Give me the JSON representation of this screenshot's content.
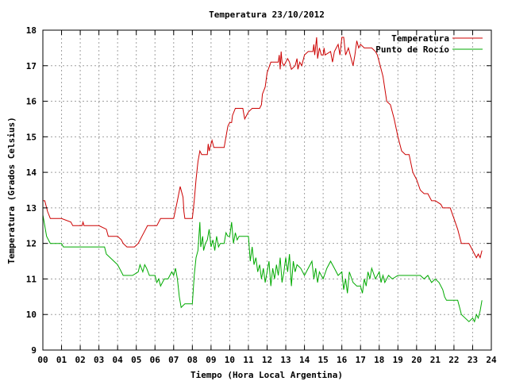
{
  "chart_data": {
    "type": "line",
    "title": "Temperatura 23/10/2012",
    "xlabel": "Tiempo (Hora Local Argentina)",
    "ylabel": "Temperatura (Grados Celsius)",
    "xlim": [
      0,
      24
    ],
    "ylim": [
      9,
      18
    ],
    "x_ticks": [
      "00",
      "01",
      "02",
      "03",
      "04",
      "05",
      "06",
      "07",
      "08",
      "09",
      "10",
      "11",
      "12",
      "13",
      "14",
      "15",
      "16",
      "17",
      "18",
      "19",
      "20",
      "21",
      "22",
      "23",
      "24"
    ],
    "y_ticks": [
      "9",
      "10",
      "11",
      "12",
      "13",
      "14",
      "15",
      "16",
      "17",
      "18"
    ],
    "grid": true,
    "legend_position": "top-right",
    "series": [
      {
        "name": "Temperatura",
        "color": "#cc0000",
        "points": [
          [
            0.0,
            13.2
          ],
          [
            0.1,
            13.2
          ],
          [
            0.25,
            12.9
          ],
          [
            0.4,
            12.7
          ],
          [
            1.0,
            12.7
          ],
          [
            1.5,
            12.6
          ],
          [
            1.6,
            12.5
          ],
          [
            2.1,
            12.5
          ],
          [
            2.15,
            12.6
          ],
          [
            2.2,
            12.5
          ],
          [
            3.0,
            12.5
          ],
          [
            3.4,
            12.4
          ],
          [
            3.5,
            12.2
          ],
          [
            4.0,
            12.2
          ],
          [
            4.2,
            12.1
          ],
          [
            4.3,
            12.0
          ],
          [
            4.5,
            11.9
          ],
          [
            4.9,
            11.9
          ],
          [
            5.1,
            12.0
          ],
          [
            5.3,
            12.2
          ],
          [
            5.5,
            12.4
          ],
          [
            5.6,
            12.5
          ],
          [
            6.1,
            12.5
          ],
          [
            6.3,
            12.7
          ],
          [
            7.0,
            12.7
          ],
          [
            7.2,
            13.2
          ],
          [
            7.35,
            13.6
          ],
          [
            7.5,
            13.3
          ],
          [
            7.55,
            12.9
          ],
          [
            7.6,
            12.7
          ],
          [
            8.0,
            12.7
          ],
          [
            8.1,
            13.2
          ],
          [
            8.2,
            13.8
          ],
          [
            8.3,
            14.3
          ],
          [
            8.4,
            14.6
          ],
          [
            8.5,
            14.5
          ],
          [
            8.8,
            14.5
          ],
          [
            8.85,
            14.8
          ],
          [
            8.9,
            14.6
          ],
          [
            9.05,
            14.9
          ],
          [
            9.15,
            14.7
          ],
          [
            9.7,
            14.7
          ],
          [
            9.8,
            15.0
          ],
          [
            9.9,
            15.3
          ],
          [
            10.0,
            15.4
          ],
          [
            10.1,
            15.4
          ],
          [
            10.15,
            15.6
          ],
          [
            10.3,
            15.8
          ],
          [
            10.7,
            15.8
          ],
          [
            10.8,
            15.5
          ],
          [
            10.9,
            15.6
          ],
          [
            11.0,
            15.7
          ],
          [
            11.2,
            15.8
          ],
          [
            11.6,
            15.8
          ],
          [
            11.7,
            15.9
          ],
          [
            11.75,
            16.2
          ],
          [
            11.9,
            16.4
          ],
          [
            12.0,
            16.8
          ],
          [
            12.2,
            17.1
          ],
          [
            12.6,
            17.1
          ],
          [
            12.65,
            17.3
          ],
          [
            12.7,
            16.9
          ],
          [
            12.75,
            17.4
          ],
          [
            12.8,
            17.1
          ],
          [
            12.9,
            17.0
          ],
          [
            13.0,
            17.1
          ],
          [
            13.1,
            17.2
          ],
          [
            13.2,
            17.1
          ],
          [
            13.3,
            16.9
          ],
          [
            13.5,
            17.0
          ],
          [
            13.6,
            17.2
          ],
          [
            13.65,
            16.9
          ],
          [
            13.75,
            17.1
          ],
          [
            13.85,
            17.0
          ],
          [
            14.0,
            17.3
          ],
          [
            14.2,
            17.4
          ],
          [
            14.45,
            17.4
          ],
          [
            14.5,
            17.6
          ],
          [
            14.55,
            17.3
          ],
          [
            14.65,
            17.8
          ],
          [
            14.7,
            17.2
          ],
          [
            14.8,
            17.5
          ],
          [
            14.9,
            17.3
          ],
          [
            15.0,
            17.3
          ],
          [
            15.05,
            17.5
          ],
          [
            15.1,
            17.3
          ],
          [
            15.4,
            17.4
          ],
          [
            15.5,
            17.1
          ],
          [
            15.6,
            17.4
          ],
          [
            15.7,
            17.5
          ],
          [
            15.8,
            17.6
          ],
          [
            15.9,
            17.3
          ],
          [
            16.0,
            17.8
          ],
          [
            16.1,
            17.8
          ],
          [
            16.2,
            17.3
          ],
          [
            16.35,
            17.5
          ],
          [
            16.5,
            17.2
          ],
          [
            16.6,
            17.0
          ],
          [
            16.7,
            17.3
          ],
          [
            16.8,
            17.7
          ],
          [
            16.9,
            17.5
          ],
          [
            17.0,
            17.6
          ],
          [
            17.2,
            17.5
          ],
          [
            17.6,
            17.5
          ],
          [
            17.8,
            17.4
          ],
          [
            17.9,
            17.3
          ],
          [
            18.0,
            17.1
          ],
          [
            18.2,
            16.7
          ],
          [
            18.4,
            16.0
          ],
          [
            18.6,
            15.9
          ],
          [
            18.8,
            15.5
          ],
          [
            19.0,
            15.0
          ],
          [
            19.2,
            14.6
          ],
          [
            19.4,
            14.5
          ],
          [
            19.6,
            14.5
          ],
          [
            19.8,
            14.0
          ],
          [
            20.0,
            13.8
          ],
          [
            20.2,
            13.5
          ],
          [
            20.4,
            13.4
          ],
          [
            20.6,
            13.4
          ],
          [
            20.8,
            13.2
          ],
          [
            21.0,
            13.2
          ],
          [
            21.3,
            13.1
          ],
          [
            21.4,
            13.0
          ],
          [
            21.8,
            13.0
          ],
          [
            22.0,
            12.7
          ],
          [
            22.2,
            12.4
          ],
          [
            22.4,
            12.0
          ],
          [
            22.8,
            12.0
          ],
          [
            23.0,
            11.8
          ],
          [
            23.2,
            11.6
          ],
          [
            23.3,
            11.7
          ],
          [
            23.4,
            11.6
          ],
          [
            23.5,
            11.8
          ]
        ]
      },
      {
        "name": "Punto de Rocío",
        "color": "#00aa00",
        "points": [
          [
            0.0,
            12.8
          ],
          [
            0.1,
            12.5
          ],
          [
            0.2,
            12.2
          ],
          [
            0.4,
            12.0
          ],
          [
            1.0,
            12.0
          ],
          [
            1.1,
            11.9
          ],
          [
            2.0,
            11.9
          ],
          [
            3.0,
            11.9
          ],
          [
            3.3,
            11.9
          ],
          [
            3.4,
            11.7
          ],
          [
            3.6,
            11.6
          ],
          [
            3.8,
            11.5
          ],
          [
            4.0,
            11.4
          ],
          [
            4.2,
            11.2
          ],
          [
            4.3,
            11.1
          ],
          [
            4.8,
            11.1
          ],
          [
            5.1,
            11.2
          ],
          [
            5.2,
            11.4
          ],
          [
            5.35,
            11.2
          ],
          [
            5.45,
            11.4
          ],
          [
            5.55,
            11.3
          ],
          [
            5.7,
            11.1
          ],
          [
            6.0,
            11.1
          ],
          [
            6.1,
            10.9
          ],
          [
            6.2,
            11.0
          ],
          [
            6.3,
            10.8
          ],
          [
            6.5,
            11.0
          ],
          [
            6.7,
            11.0
          ],
          [
            6.9,
            11.2
          ],
          [
            7.0,
            11.1
          ],
          [
            7.1,
            11.3
          ],
          [
            7.2,
            11.0
          ],
          [
            7.3,
            10.5
          ],
          [
            7.4,
            10.2
          ],
          [
            7.6,
            10.3
          ],
          [
            8.0,
            10.3
          ],
          [
            8.1,
            11.1
          ],
          [
            8.2,
            11.6
          ],
          [
            8.3,
            11.8
          ],
          [
            8.4,
            12.6
          ],
          [
            8.45,
            11.9
          ],
          [
            8.55,
            12.2
          ],
          [
            8.6,
            11.8
          ],
          [
            8.7,
            12.0
          ],
          [
            8.8,
            12.1
          ],
          [
            8.9,
            12.4
          ],
          [
            9.0,
            11.9
          ],
          [
            9.1,
            12.1
          ],
          [
            9.2,
            11.8
          ],
          [
            9.3,
            12.2
          ],
          [
            9.4,
            11.9
          ],
          [
            9.5,
            12.0
          ],
          [
            9.7,
            12.0
          ],
          [
            9.8,
            12.3
          ],
          [
            9.9,
            12.2
          ],
          [
            10.0,
            12.2
          ],
          [
            10.1,
            12.6
          ],
          [
            10.2,
            12.0
          ],
          [
            10.3,
            12.3
          ],
          [
            10.4,
            12.1
          ],
          [
            10.5,
            12.2
          ],
          [
            11.0,
            12.2
          ],
          [
            11.1,
            11.5
          ],
          [
            11.2,
            11.9
          ],
          [
            11.3,
            11.4
          ],
          [
            11.4,
            11.6
          ],
          [
            11.5,
            11.2
          ],
          [
            11.6,
            11.4
          ],
          [
            11.7,
            11.0
          ],
          [
            11.8,
            11.3
          ],
          [
            11.9,
            10.9
          ],
          [
            12.0,
            11.2
          ],
          [
            12.1,
            11.5
          ],
          [
            12.2,
            10.8
          ],
          [
            12.3,
            11.3
          ],
          [
            12.4,
            11.0
          ],
          [
            12.5,
            11.4
          ],
          [
            12.6,
            11.1
          ],
          [
            12.7,
            11.6
          ],
          [
            12.8,
            10.9
          ],
          [
            12.9,
            11.2
          ],
          [
            13.0,
            11.6
          ],
          [
            13.1,
            11.2
          ],
          [
            13.2,
            11.7
          ],
          [
            13.3,
            10.8
          ],
          [
            13.4,
            11.5
          ],
          [
            13.5,
            11.2
          ],
          [
            13.6,
            11.4
          ],
          [
            13.8,
            11.3
          ],
          [
            14.0,
            11.1
          ],
          [
            14.2,
            11.3
          ],
          [
            14.4,
            11.5
          ],
          [
            14.5,
            11.0
          ],
          [
            14.6,
            11.3
          ],
          [
            14.7,
            10.9
          ],
          [
            14.8,
            11.2
          ],
          [
            15.0,
            11.0
          ],
          [
            15.2,
            11.3
          ],
          [
            15.4,
            11.5
          ],
          [
            15.6,
            11.3
          ],
          [
            15.8,
            11.1
          ],
          [
            16.0,
            11.2
          ],
          [
            16.1,
            10.7
          ],
          [
            16.2,
            11.0
          ],
          [
            16.3,
            10.6
          ],
          [
            16.4,
            11.2
          ],
          [
            16.6,
            10.9
          ],
          [
            16.8,
            10.8
          ],
          [
            17.0,
            10.8
          ],
          [
            17.1,
            10.6
          ],
          [
            17.2,
            11.0
          ],
          [
            17.3,
            10.8
          ],
          [
            17.4,
            11.2
          ],
          [
            17.5,
            11.0
          ],
          [
            17.6,
            11.3
          ],
          [
            17.8,
            11.0
          ],
          [
            18.0,
            11.2
          ],
          [
            18.1,
            10.9
          ],
          [
            18.2,
            11.1
          ],
          [
            18.3,
            10.9
          ],
          [
            18.5,
            11.1
          ],
          [
            18.7,
            11.0
          ],
          [
            19.0,
            11.1
          ],
          [
            19.5,
            11.1
          ],
          [
            20.0,
            11.1
          ],
          [
            20.2,
            11.1
          ],
          [
            20.4,
            11.0
          ],
          [
            20.6,
            11.1
          ],
          [
            20.8,
            10.9
          ],
          [
            21.0,
            11.0
          ],
          [
            21.2,
            10.9
          ],
          [
            21.4,
            10.7
          ],
          [
            21.5,
            10.5
          ],
          [
            21.6,
            10.4
          ],
          [
            22.0,
            10.4
          ],
          [
            22.2,
            10.4
          ],
          [
            22.3,
            10.2
          ],
          [
            22.4,
            10.0
          ],
          [
            22.6,
            9.9
          ],
          [
            22.8,
            9.8
          ],
          [
            23.0,
            9.9
          ],
          [
            23.1,
            9.8
          ],
          [
            23.2,
            10.0
          ],
          [
            23.3,
            9.9
          ],
          [
            23.4,
            10.1
          ],
          [
            23.5,
            10.4
          ]
        ]
      }
    ]
  }
}
